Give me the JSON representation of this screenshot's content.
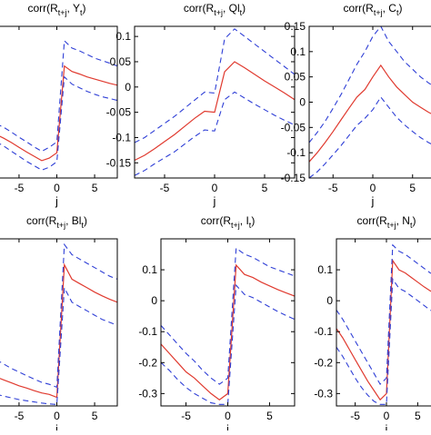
{
  "colors": {
    "response": "#e03a2f",
    "band": "#2f3fd6",
    "axis": "#000000"
  },
  "chart_data": [
    {
      "type": "line",
      "title_parts": [
        [
          "corr(R",
          "t+j",
          ", Y",
          "t",
          ")"
        ]
      ],
      "xlabel": "j",
      "xlim": [
        -8,
        8
      ],
      "ylim": [
        -0.3,
        0.12
      ],
      "xticks": [
        "-5",
        "0",
        "5"
      ],
      "yticks": [],
      "grid": false,
      "x": [
        -8,
        -7,
        -6,
        -5,
        -4,
        -3,
        -2,
        -1,
        0,
        1,
        2,
        3,
        4,
        5,
        6,
        7,
        8
      ],
      "series": [
        {
          "style": "solid",
          "values": [
            -0.18,
            -0.19,
            -0.202,
            -0.215,
            -0.228,
            -0.24,
            -0.252,
            -0.245,
            -0.23,
            0.01,
            -0.005,
            -0.012,
            -0.02,
            -0.026,
            -0.032,
            -0.038,
            -0.043
          ]
        },
        {
          "style": "dashed",
          "values": [
            -0.15,
            -0.16,
            -0.173,
            -0.187,
            -0.2,
            -0.214,
            -0.226,
            -0.215,
            -0.2,
            0.08,
            0.06,
            0.052,
            0.042,
            0.032,
            0.025,
            0.018,
            0.01
          ]
        },
        {
          "style": "dashed",
          "values": [
            -0.2,
            -0.212,
            -0.226,
            -0.24,
            -0.254,
            -0.266,
            -0.278,
            -0.27,
            -0.255,
            -0.02,
            -0.04,
            -0.05,
            -0.06,
            -0.068,
            -0.075,
            -0.08,
            -0.085
          ]
        }
      ]
    },
    {
      "type": "line",
      "title_parts": [
        [
          "corr(R",
          "t+j",
          ", Ql",
          "t",
          ")"
        ]
      ],
      "xlabel": "j",
      "xlim": [
        -8,
        8
      ],
      "ylim": [
        -0.18,
        0.12
      ],
      "xticks": [
        "-5",
        "0",
        "5"
      ],
      "yticks": [
        "0.1",
        "0.05",
        "0",
        "-0.05",
        "-0.1",
        "-0.15"
      ],
      "grid": false,
      "x": [
        -8,
        -7,
        -6,
        -5,
        -4,
        -3,
        -2,
        -1,
        0,
        1,
        2,
        3,
        4,
        5,
        6,
        7,
        8
      ],
      "series": [
        {
          "style": "solid",
          "values": [
            -0.145,
            -0.135,
            -0.122,
            -0.108,
            -0.094,
            -0.078,
            -0.062,
            -0.048,
            -0.05,
            0.03,
            0.05,
            0.038,
            0.025,
            0.012,
            0.0,
            -0.012,
            -0.025
          ]
        },
        {
          "style": "dashed",
          "values": [
            -0.11,
            -0.1,
            -0.086,
            -0.072,
            -0.058,
            -0.042,
            -0.026,
            -0.01,
            -0.012,
            0.095,
            0.115,
            0.1,
            0.085,
            0.07,
            0.055,
            0.04,
            0.025
          ]
        },
        {
          "style": "dashed",
          "values": [
            -0.175,
            -0.165,
            -0.152,
            -0.14,
            -0.128,
            -0.113,
            -0.098,
            -0.085,
            -0.087,
            -0.025,
            -0.01,
            -0.022,
            -0.034,
            -0.045,
            -0.056,
            -0.066,
            -0.075
          ]
        }
      ]
    },
    {
      "type": "line",
      "title_parts": [
        [
          "corr(R",
          "t+j",
          ", C",
          "t",
          ")"
        ]
      ],
      "xlabel": "j",
      "xlim": [
        -8,
        8
      ],
      "ylim": [
        -0.15,
        0.15
      ],
      "xticks": [
        "-5",
        "0",
        "5"
      ],
      "yticks": [
        "0.15",
        "0.1",
        "0.05",
        "0",
        "-0.05",
        "-0.1",
        "-0.15"
      ],
      "grid": false,
      "x": [
        -8,
        -7,
        -6,
        -5,
        -4,
        -3,
        -2,
        -1,
        0,
        1,
        2,
        3,
        4,
        5,
        6,
        7,
        8
      ],
      "series": [
        {
          "style": "solid",
          "values": [
            -0.118,
            -0.1,
            -0.08,
            -0.058,
            -0.035,
            -0.012,
            0.01,
            0.025,
            0.05,
            0.073,
            0.05,
            0.03,
            0.015,
            0.0,
            -0.01,
            -0.02,
            -0.028
          ]
        },
        {
          "style": "dashed",
          "values": [
            -0.08,
            -0.06,
            -0.038,
            -0.012,
            0.015,
            0.045,
            0.075,
            0.1,
            0.13,
            0.15,
            0.12,
            0.1,
            0.08,
            0.065,
            0.05,
            0.038,
            0.028
          ]
        },
        {
          "style": "dashed",
          "values": [
            -0.15,
            -0.138,
            -0.122,
            -0.104,
            -0.086,
            -0.066,
            -0.046,
            -0.032,
            -0.015,
            0.01,
            -0.01,
            -0.03,
            -0.045,
            -0.058,
            -0.07,
            -0.08,
            -0.088
          ]
        }
      ]
    },
    {
      "type": "line",
      "title_parts": [
        [
          "corr(R",
          "t+j",
          ", Bl",
          "t",
          ")"
        ]
      ],
      "xlabel": "j",
      "xlim": [
        -8,
        8
      ],
      "ylim": [
        -0.34,
        0.24
      ],
      "xticks": [
        "-5",
        "0",
        "5"
      ],
      "yticks": [],
      "grid": false,
      "x": [
        -8,
        -7,
        -6,
        -5,
        -4,
        -3,
        -2,
        -1,
        0,
        1,
        2,
        3,
        4,
        5,
        6,
        7,
        8
      ],
      "series": [
        {
          "style": "solid",
          "values": [
            -0.24,
            -0.25,
            -0.26,
            -0.27,
            -0.278,
            -0.287,
            -0.295,
            -0.3,
            -0.31,
            0.15,
            0.1,
            0.085,
            0.07,
            0.055,
            0.042,
            0.03,
            0.02
          ]
        },
        {
          "style": "dashed",
          "values": [
            -0.18,
            -0.195,
            -0.21,
            -0.222,
            -0.235,
            -0.247,
            -0.258,
            -0.265,
            -0.275,
            0.22,
            0.185,
            0.17,
            0.155,
            0.14,
            0.125,
            0.11,
            0.1
          ]
        },
        {
          "style": "dashed",
          "values": [
            -0.3,
            -0.306,
            -0.312,
            -0.318,
            -0.322,
            -0.326,
            -0.33,
            -0.333,
            -0.335,
            0.07,
            0.02,
            0.005,
            -0.01,
            -0.025,
            -0.04,
            -0.05,
            -0.06
          ]
        }
      ]
    },
    {
      "type": "line",
      "title_parts": [
        [
          "corr(R",
          "t+j",
          ", I",
          "t",
          ")"
        ]
      ],
      "xlabel": "j",
      "xlim": [
        -8,
        8
      ],
      "ylim": [
        -0.34,
        0.2
      ],
      "xticks": [
        "-5",
        "0",
        "5"
      ],
      "yticks": [
        "0.1",
        "0",
        "-0.1",
        "-0.2",
        "-0.3"
      ],
      "grid": false,
      "x": [
        -8,
        -7,
        -6,
        -5,
        -4,
        -3,
        -2,
        -1,
        0,
        1,
        2,
        3,
        4,
        5,
        6,
        7,
        8
      ],
      "series": [
        {
          "style": "solid",
          "values": [
            -0.14,
            -0.17,
            -0.2,
            -0.23,
            -0.25,
            -0.275,
            -0.3,
            -0.32,
            -0.3,
            0.115,
            0.085,
            0.075,
            0.06,
            0.048,
            0.036,
            0.025,
            0.015
          ]
        },
        {
          "style": "dashed",
          "values": [
            -0.08,
            -0.11,
            -0.14,
            -0.17,
            -0.195,
            -0.225,
            -0.25,
            -0.27,
            -0.25,
            0.17,
            0.15,
            0.14,
            0.125,
            0.11,
            0.1,
            0.09,
            0.08
          ]
        },
        {
          "style": "dashed",
          "values": [
            -0.2,
            -0.225,
            -0.255,
            -0.28,
            -0.3,
            -0.315,
            -0.33,
            -0.335,
            -0.335,
            0.05,
            0.02,
            0.01,
            -0.005,
            -0.02,
            -0.035,
            -0.048,
            -0.06
          ]
        }
      ]
    },
    {
      "type": "line",
      "title_parts": [
        [
          "corr(R",
          "t+j",
          ", N",
          "t",
          ")"
        ]
      ],
      "xlabel": "j",
      "xlim": [
        -8,
        8
      ],
      "ylim": [
        -0.34,
        0.2
      ],
      "xticks": [
        "-5",
        "0",
        "5"
      ],
      "yticks": [
        "0.1",
        "0",
        "-0.1",
        "-0.2",
        "-0.3"
      ],
      "grid": false,
      "x": [
        -8,
        -7,
        -6,
        -5,
        -4,
        -3,
        -2,
        -1,
        0,
        1,
        2,
        3,
        4,
        5,
        6,
        7,
        8
      ],
      "series": [
        {
          "style": "solid",
          "values": [
            -0.09,
            -0.12,
            -0.155,
            -0.19,
            -0.225,
            -0.26,
            -0.29,
            -0.32,
            -0.3,
            0.13,
            0.1,
            0.09,
            0.075,
            0.06,
            0.045,
            0.032,
            0.02
          ]
        },
        {
          "style": "dashed",
          "values": [
            -0.03,
            -0.06,
            -0.095,
            -0.13,
            -0.165,
            -0.2,
            -0.235,
            -0.27,
            -0.25,
            0.18,
            0.16,
            0.15,
            0.135,
            0.12,
            0.105,
            0.09,
            0.08
          ]
        },
        {
          "style": "dashed",
          "values": [
            -0.15,
            -0.18,
            -0.215,
            -0.25,
            -0.28,
            -0.305,
            -0.325,
            -0.335,
            -0.335,
            0.07,
            0.04,
            0.03,
            0.015,
            0.0,
            -0.015,
            -0.03,
            -0.04
          ]
        }
      ]
    }
  ]
}
